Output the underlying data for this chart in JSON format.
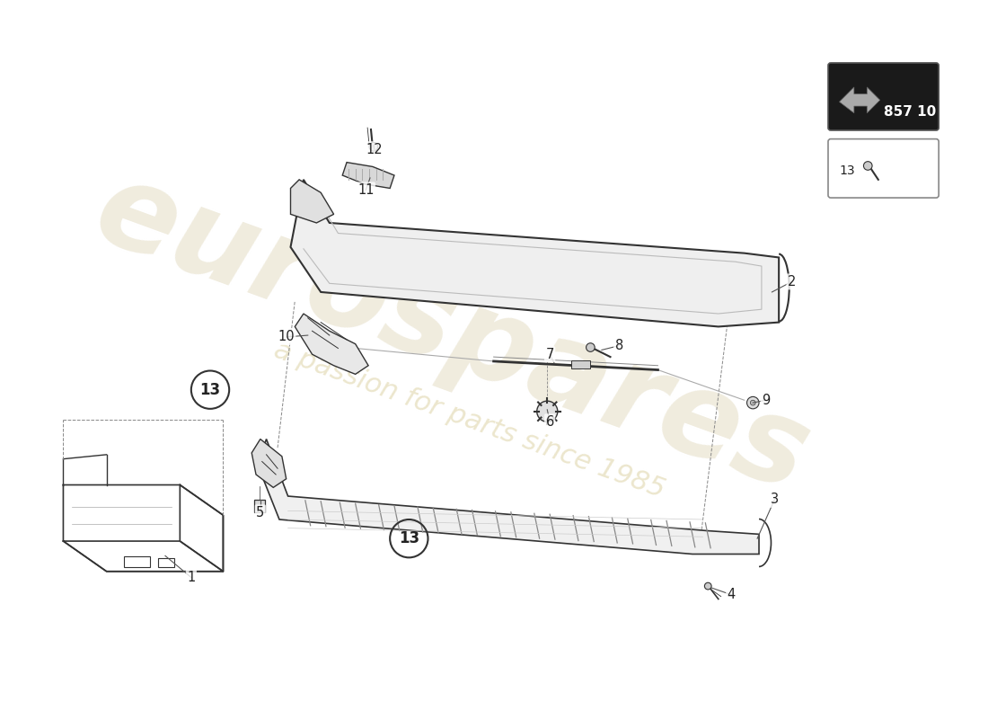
{
  "bg_color": "#ffffff",
  "watermark_text1": "eurospares",
  "watermark_text2": "a passion for parts since 1985",
  "part_number_box": "857 10",
  "line_color": "#333333",
  "dashed_line_color": "#888888",
  "watermark_color1": "#d4c8a0",
  "watermark_color2": "#c8b870"
}
